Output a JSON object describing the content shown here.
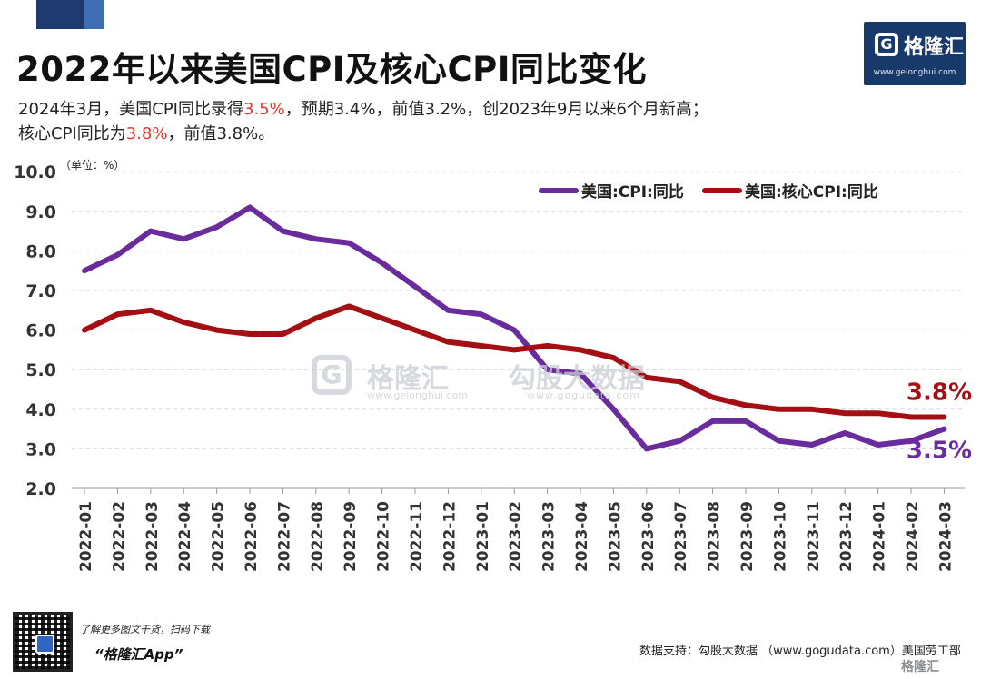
{
  "header": {
    "title": "2022年以来美国CPI及核心CPI同比变化",
    "line1_a": "2024年3月，美国CPI同比录得",
    "line1_hl": "3.5%",
    "line1_b": "，预期3.4%，前值3.2%，创2023年9月以来6个月新高；",
    "line2_a": "核心CPI同比为",
    "line2_hl": "3.8%",
    "line2_b": "，前值3.8%。"
  },
  "logo": {
    "name": "格隆汇",
    "url": "www.gelonghui.com"
  },
  "watermark": {
    "brand1": "格隆汇",
    "url1": "www.gelonghui.com",
    "brand2": "勾股大数据",
    "url2": "www.gogudata.com"
  },
  "footer": {
    "promo": "了解更多图文干货，扫码下载",
    "app": "“格隆汇App”",
    "source": "数据支持：勾股大数据 （www.gogudata.com）美国劳工部",
    "corner": "格隆汇"
  },
  "colors": {
    "cpi": "#6a2c9c",
    "core": "#a30f12",
    "highlight": "#e8352e",
    "brand": "#173a6b"
  },
  "chart_data": {
    "type": "line",
    "unit_label": "（单位：%）",
    "ylim": [
      2.0,
      10.0
    ],
    "yticks": [
      "2.0",
      "3.0",
      "4.0",
      "5.0",
      "6.0",
      "7.0",
      "8.0",
      "9.0",
      "10.0"
    ],
    "grid": true,
    "legend_position": "top-right",
    "categories": [
      "2022-01",
      "2022-02",
      "2022-03",
      "2022-04",
      "2022-05",
      "2022-06",
      "2022-07",
      "2022-08",
      "2022-09",
      "2022-10",
      "2022-11",
      "2022-12",
      "2023-01",
      "2023-02",
      "2023-03",
      "2023-04",
      "2023-05",
      "2023-06",
      "2023-07",
      "2023-08",
      "2023-09",
      "2023-10",
      "2023-11",
      "2023-12",
      "2024-01",
      "2024-02",
      "2024-03"
    ],
    "series": [
      {
        "name": "美国:CPI:同比",
        "color": "#6a2c9c",
        "values": [
          7.5,
          7.9,
          8.5,
          8.3,
          8.6,
          9.1,
          8.5,
          8.3,
          8.2,
          7.7,
          7.1,
          6.5,
          6.4,
          6.0,
          5.0,
          4.9,
          4.0,
          3.0,
          3.2,
          3.7,
          3.7,
          3.2,
          3.1,
          3.4,
          3.1,
          3.2,
          3.5
        ],
        "end_label": "3.5%"
      },
      {
        "name": "美国:核心CPI:同比",
        "color": "#a30f12",
        "values": [
          6.0,
          6.4,
          6.5,
          6.2,
          6.0,
          5.9,
          5.9,
          6.3,
          6.6,
          6.3,
          6.0,
          5.7,
          5.6,
          5.5,
          5.6,
          5.5,
          5.3,
          4.8,
          4.7,
          4.3,
          4.1,
          4.0,
          4.0,
          3.9,
          3.9,
          3.8,
          3.8
        ],
        "end_label": "3.8%"
      }
    ]
  }
}
